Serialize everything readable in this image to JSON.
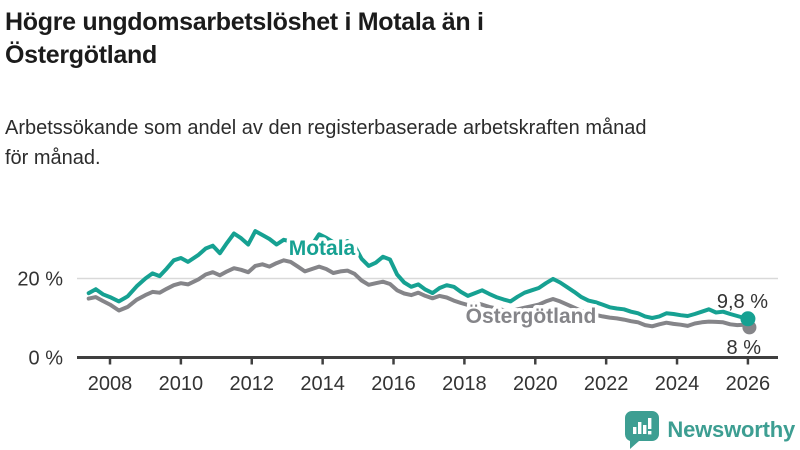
{
  "header": {
    "title_lines": [
      "Högre ungdomsarbetslöshet i Motala än i",
      "Östergötland"
    ],
    "subtitle_lines": [
      "Arbetssökande som andel av den registerbaserade arbetskraften månad",
      "för månad."
    ]
  },
  "branding": {
    "logo_text": "Newsworthy",
    "logo_icon": "bar-chart-speech-bubble-icon",
    "logo_color": "#3d9e92"
  },
  "colors": {
    "motala_line": "#16a192",
    "ostergotland_line": "#858589",
    "axis": "#3f3f3f",
    "gridline": "#d9d9d9",
    "tick_text": "#333333",
    "end_label_text": "#333333"
  },
  "chart_data": {
    "type": "line",
    "title": "Högre ungdomsarbetslöshet i Motala än i Östergötland",
    "subtitle": "Arbetssökande som andel av den registerbaserade arbetskraften månad för månad.",
    "unit": "%",
    "grid": "horizontal-only",
    "legend_position": "inline-labels-on-lines",
    "x_axis": {
      "range": [
        2007.4,
        2026.2
      ],
      "ticks": [
        {
          "value": 2008,
          "label": "2008"
        },
        {
          "value": 2010,
          "label": "2010"
        },
        {
          "value": 2012,
          "label": "2012"
        },
        {
          "value": 2014,
          "label": "2014"
        },
        {
          "value": 2016,
          "label": "2016"
        },
        {
          "value": 2018,
          "label": "2018"
        },
        {
          "value": 2020,
          "label": "2020"
        },
        {
          "value": 2022,
          "label": "2022"
        },
        {
          "value": 2024,
          "label": "2024"
        },
        {
          "value": 2026,
          "label": "2026"
        }
      ]
    },
    "y_axis": {
      "range": [
        0,
        36
      ],
      "ticks": [
        {
          "value": 0,
          "label": "0 %"
        },
        {
          "value": 20,
          "label": "20 %"
        }
      ]
    },
    "series": [
      {
        "name": "Östergötland",
        "color": "#858589",
        "end_label": "8 %",
        "end_value": 8.0,
        "points": [
          [
            2007.4,
            14.9
          ],
          [
            2007.6,
            15.3
          ],
          [
            2007.8,
            14.3
          ],
          [
            2008.0,
            13.4
          ],
          [
            2008.25,
            11.9
          ],
          [
            2008.5,
            12.8
          ],
          [
            2008.75,
            14.6
          ],
          [
            2009.0,
            15.8
          ],
          [
            2009.2,
            16.6
          ],
          [
            2009.4,
            16.4
          ],
          [
            2009.6,
            17.4
          ],
          [
            2009.8,
            18.3
          ],
          [
            2010.0,
            18.8
          ],
          [
            2010.2,
            18.5
          ],
          [
            2010.5,
            19.8
          ],
          [
            2010.7,
            21.0
          ],
          [
            2010.9,
            21.6
          ],
          [
            2011.1,
            20.8
          ],
          [
            2011.3,
            21.8
          ],
          [
            2011.5,
            22.6
          ],
          [
            2011.7,
            22.2
          ],
          [
            2011.9,
            21.6
          ],
          [
            2012.1,
            23.2
          ],
          [
            2012.3,
            23.6
          ],
          [
            2012.5,
            23.0
          ],
          [
            2012.7,
            23.9
          ],
          [
            2012.9,
            24.6
          ],
          [
            2013.1,
            24.2
          ],
          [
            2013.3,
            23.0
          ],
          [
            2013.5,
            21.8
          ],
          [
            2013.7,
            22.4
          ],
          [
            2013.9,
            23.0
          ],
          [
            2014.1,
            22.4
          ],
          [
            2014.3,
            21.4
          ],
          [
            2014.5,
            21.8
          ],
          [
            2014.7,
            22.0
          ],
          [
            2014.9,
            21.2
          ],
          [
            2015.1,
            19.5
          ],
          [
            2015.3,
            18.4
          ],
          [
            2015.5,
            18.8
          ],
          [
            2015.7,
            19.2
          ],
          [
            2015.9,
            18.6
          ],
          [
            2016.1,
            17.0
          ],
          [
            2016.3,
            16.2
          ],
          [
            2016.5,
            15.8
          ],
          [
            2016.7,
            16.4
          ],
          [
            2016.9,
            15.6
          ],
          [
            2017.1,
            15.0
          ],
          [
            2017.3,
            15.6
          ],
          [
            2017.5,
            15.2
          ],
          [
            2017.7,
            14.4
          ],
          [
            2017.9,
            13.8
          ],
          [
            2018.1,
            13.3
          ],
          [
            2018.3,
            13.8
          ],
          [
            2018.5,
            13.4
          ],
          [
            2018.7,
            12.8
          ],
          [
            2018.9,
            12.4
          ],
          [
            2019.1,
            12.0
          ],
          [
            2019.3,
            11.7
          ],
          [
            2019.5,
            12.2
          ],
          [
            2019.7,
            12.6
          ],
          [
            2019.9,
            13.0
          ],
          [
            2020.1,
            13.4
          ],
          [
            2020.3,
            14.2
          ],
          [
            2020.5,
            14.8
          ],
          [
            2020.7,
            14.2
          ],
          [
            2020.9,
            13.4
          ],
          [
            2021.1,
            12.6
          ],
          [
            2021.3,
            11.8
          ],
          [
            2021.5,
            11.2
          ],
          [
            2021.7,
            10.8
          ],
          [
            2021.9,
            10.4
          ],
          [
            2022.1,
            10.1
          ],
          [
            2022.3,
            9.9
          ],
          [
            2022.5,
            9.6
          ],
          [
            2022.7,
            9.2
          ],
          [
            2022.9,
            8.9
          ],
          [
            2023.1,
            8.2
          ],
          [
            2023.3,
            7.9
          ],
          [
            2023.5,
            8.4
          ],
          [
            2023.7,
            8.8
          ],
          [
            2023.9,
            8.5
          ],
          [
            2024.1,
            8.3
          ],
          [
            2024.3,
            8.0
          ],
          [
            2024.5,
            8.6
          ],
          [
            2024.7,
            8.9
          ],
          [
            2024.9,
            9.1
          ],
          [
            2025.1,
            9.0
          ],
          [
            2025.3,
            8.9
          ],
          [
            2025.5,
            8.4
          ],
          [
            2025.7,
            8.2
          ],
          [
            2025.9,
            8.3
          ],
          [
            2026.0,
            8.0
          ]
        ]
      },
      {
        "name": "Motala",
        "color": "#16a192",
        "end_label": "9,8 %",
        "end_value": 9.8,
        "points": [
          [
            2007.4,
            16.3
          ],
          [
            2007.6,
            17.3
          ],
          [
            2007.8,
            16.0
          ],
          [
            2008.0,
            15.3
          ],
          [
            2008.25,
            14.2
          ],
          [
            2008.5,
            15.5
          ],
          [
            2008.75,
            18.0
          ],
          [
            2009.0,
            20.0
          ],
          [
            2009.2,
            21.3
          ],
          [
            2009.4,
            20.6
          ],
          [
            2009.6,
            22.5
          ],
          [
            2009.8,
            24.6
          ],
          [
            2010.0,
            25.2
          ],
          [
            2010.2,
            24.2
          ],
          [
            2010.5,
            26.0
          ],
          [
            2010.7,
            27.6
          ],
          [
            2010.9,
            28.3
          ],
          [
            2011.1,
            26.4
          ],
          [
            2011.3,
            29.0
          ],
          [
            2011.5,
            31.4
          ],
          [
            2011.7,
            30.2
          ],
          [
            2011.9,
            28.6
          ],
          [
            2012.1,
            32.0
          ],
          [
            2012.3,
            31.0
          ],
          [
            2012.5,
            30.0
          ],
          [
            2012.7,
            28.6
          ],
          [
            2012.9,
            29.8
          ],
          [
            2013.1,
            29.4
          ],
          [
            2013.3,
            28.2
          ],
          [
            2013.5,
            26.9
          ],
          [
            2013.7,
            28.5
          ],
          [
            2013.9,
            31.2
          ],
          [
            2014.1,
            30.3
          ],
          [
            2014.3,
            29.2
          ],
          [
            2014.5,
            28.6
          ],
          [
            2014.7,
            29.5
          ],
          [
            2014.9,
            28.3
          ],
          [
            2015.1,
            25.0
          ],
          [
            2015.3,
            23.2
          ],
          [
            2015.5,
            24.0
          ],
          [
            2015.7,
            25.5
          ],
          [
            2015.9,
            24.8
          ],
          [
            2016.1,
            21.0
          ],
          [
            2016.3,
            19.0
          ],
          [
            2016.5,
            17.9
          ],
          [
            2016.7,
            18.5
          ],
          [
            2016.9,
            17.2
          ],
          [
            2017.1,
            16.3
          ],
          [
            2017.3,
            17.6
          ],
          [
            2017.5,
            18.3
          ],
          [
            2017.7,
            17.9
          ],
          [
            2017.9,
            16.6
          ],
          [
            2018.1,
            15.6
          ],
          [
            2018.3,
            16.3
          ],
          [
            2018.5,
            17.0
          ],
          [
            2018.7,
            16.1
          ],
          [
            2018.9,
            15.3
          ],
          [
            2019.1,
            14.7
          ],
          [
            2019.3,
            14.2
          ],
          [
            2019.5,
            15.4
          ],
          [
            2019.7,
            16.4
          ],
          [
            2019.9,
            17.0
          ],
          [
            2020.1,
            17.6
          ],
          [
            2020.3,
            18.8
          ],
          [
            2020.5,
            19.9
          ],
          [
            2020.7,
            19.0
          ],
          [
            2020.9,
            17.8
          ],
          [
            2021.1,
            16.6
          ],
          [
            2021.3,
            15.3
          ],
          [
            2021.5,
            14.4
          ],
          [
            2021.7,
            14.0
          ],
          [
            2021.9,
            13.4
          ],
          [
            2022.1,
            12.7
          ],
          [
            2022.3,
            12.4
          ],
          [
            2022.5,
            12.2
          ],
          [
            2022.7,
            11.6
          ],
          [
            2022.9,
            11.2
          ],
          [
            2023.1,
            10.4
          ],
          [
            2023.3,
            10.0
          ],
          [
            2023.5,
            10.4
          ],
          [
            2023.7,
            11.2
          ],
          [
            2023.9,
            11.0
          ],
          [
            2024.1,
            10.7
          ],
          [
            2024.3,
            10.5
          ],
          [
            2024.5,
            11.0
          ],
          [
            2024.7,
            11.6
          ],
          [
            2024.9,
            12.2
          ],
          [
            2025.1,
            11.4
          ],
          [
            2025.3,
            11.6
          ],
          [
            2025.5,
            11.0
          ],
          [
            2025.7,
            10.5
          ],
          [
            2025.9,
            10.0
          ],
          [
            2026.0,
            9.8
          ]
        ]
      }
    ]
  }
}
